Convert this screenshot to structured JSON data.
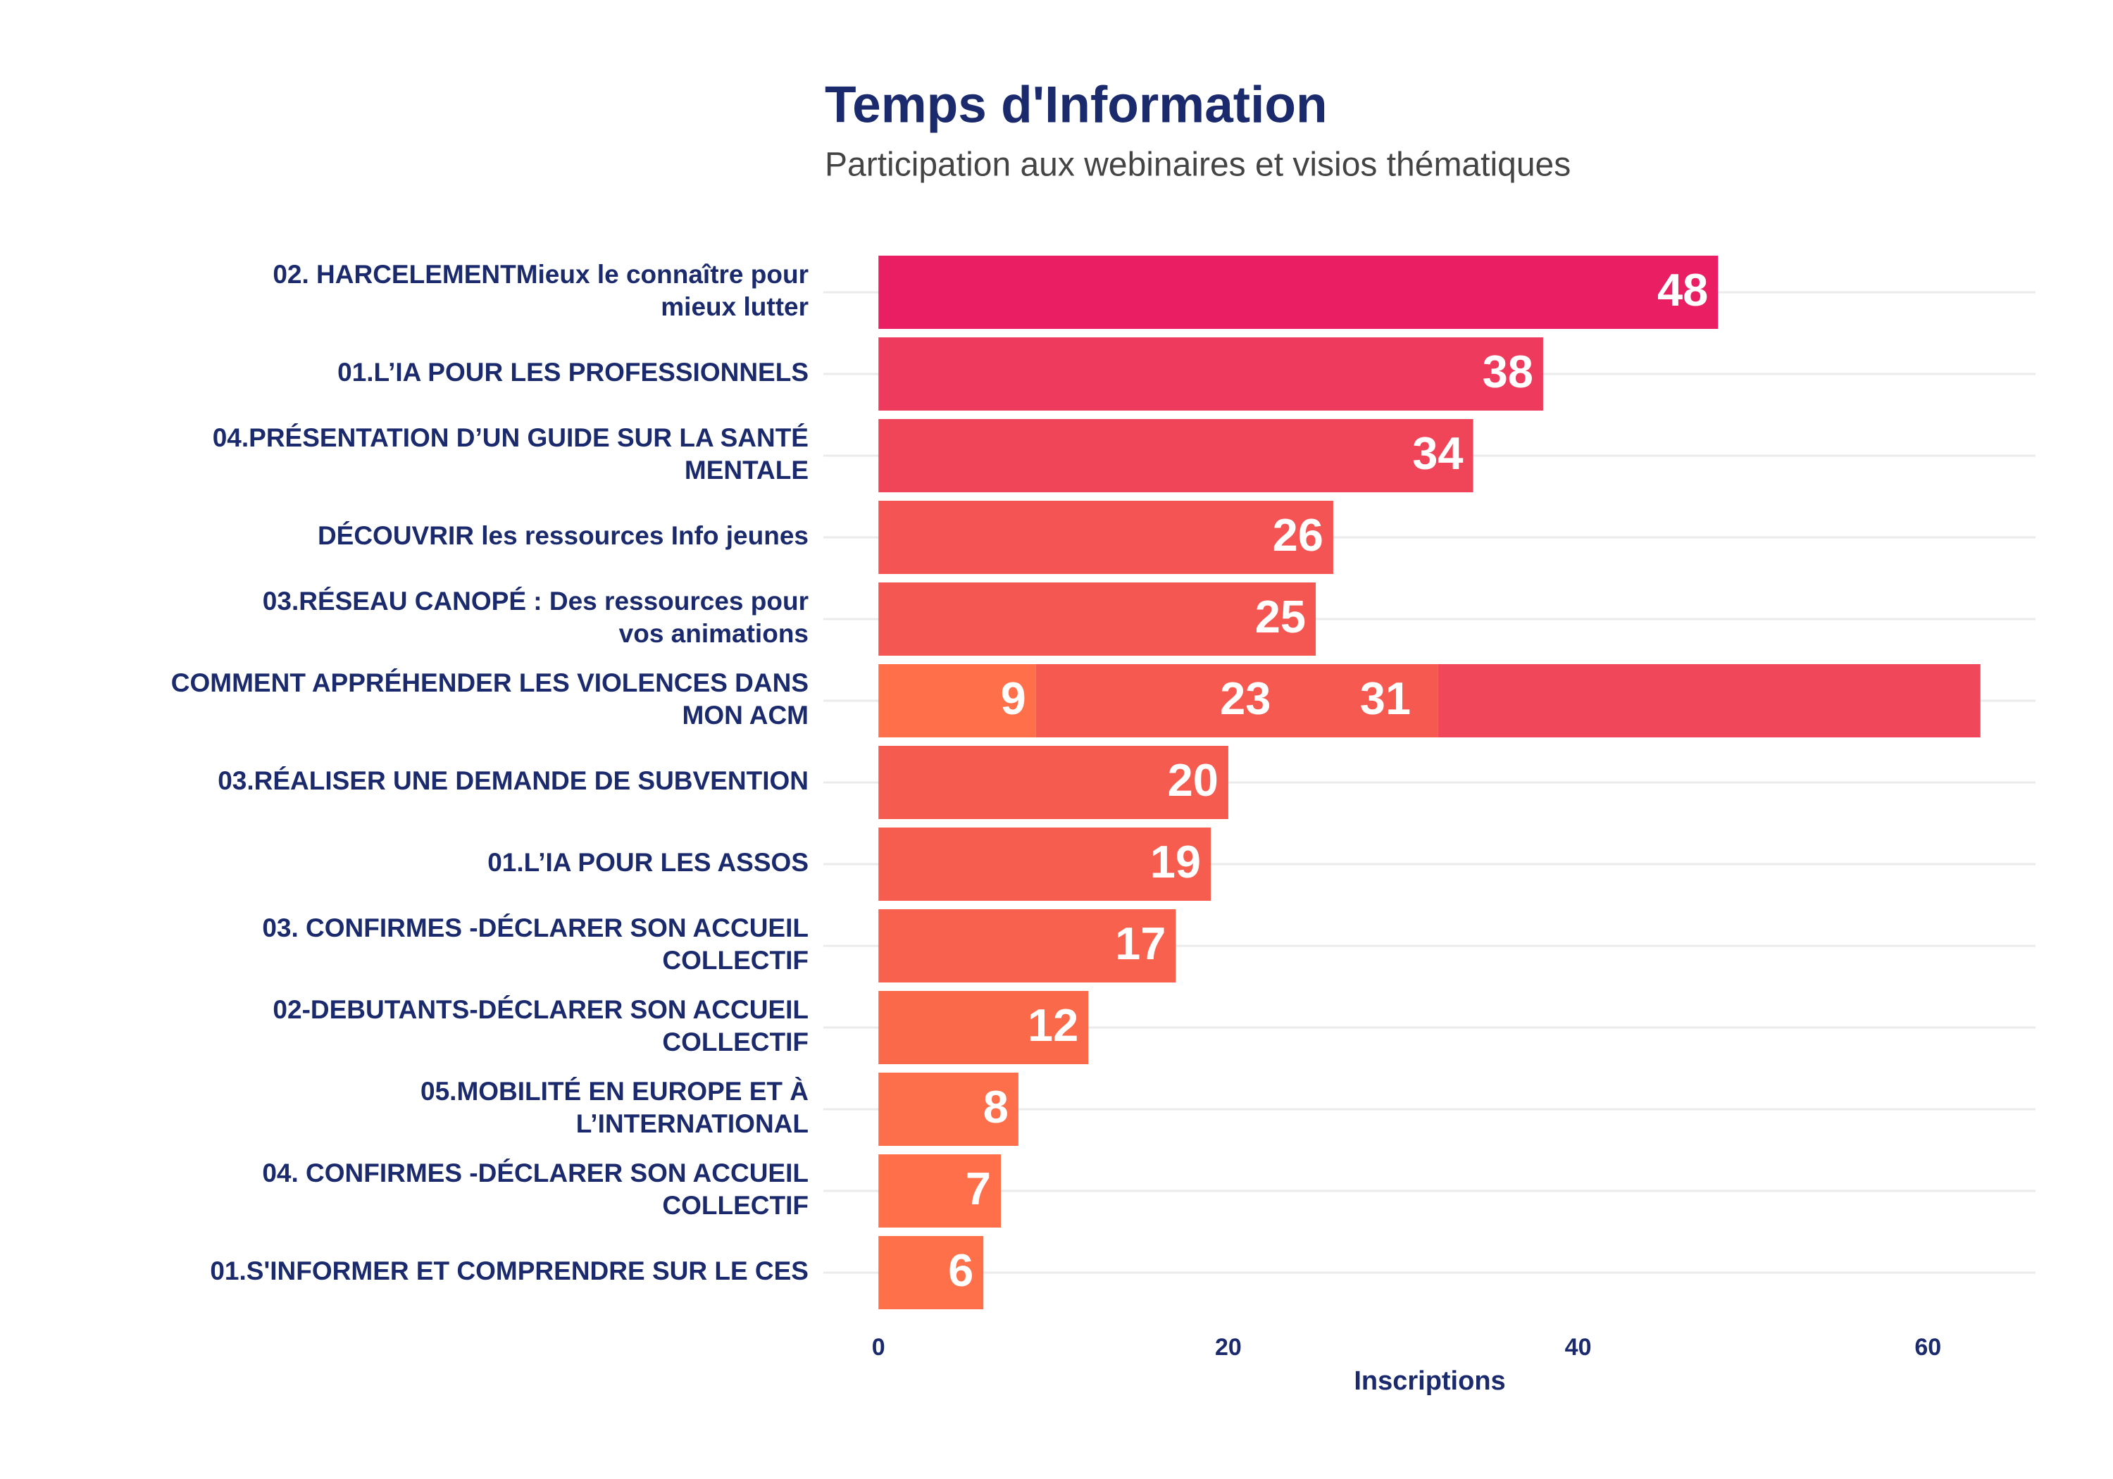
{
  "chart_data": {
    "type": "hbar-stacked",
    "title": "Temps d'Information",
    "subtitle": "Participation aux webinaires et visios thématiques",
    "x_label": "Inscriptions",
    "categories": [
      "02. HARCELEMENTMieux le connaître pour\nmieux lutter",
      "01.L’IA POUR LES PROFESSIONNELS",
      "04.PRÉSENTATION D’UN GUIDE SUR LA SANTÉ\nMENTALE",
      "DÉCOUVRIR les ressources Info jeunes",
      "03.RÉSEAU CANOPÉ : Des ressources pour\nvos animations",
      "COMMENT APPRÉHENDER LES VIOLENCES DANS\nMON ACM",
      "03.RÉALISER UNE DEMANDE DE SUBVENTION",
      "01.L’IA POUR LES ASSOS",
      "03. CONFIRMES -DÉCLARER SON ACCUEIL\nCOLLECTIF",
      "02-DEBUTANTS-DÉCLARER SON ACCUEIL\nCOLLECTIF",
      "05.MOBILITÉ EN EUROPE ET À\nL’INTERNATIONAL",
      "04. CONFIRMES -DÉCLARER SON ACCUEIL\nCOLLECTIF",
      "01.S'INFORMER ET COMPRENDRE SUR LE CES"
    ],
    "values": [
      [
        48
      ],
      [
        38
      ],
      [
        34
      ],
      [
        26
      ],
      [
        25
      ],
      [
        9,
        23,
        31
      ],
      [
        20
      ],
      [
        19
      ],
      [
        17
      ],
      [
        12
      ],
      [
        8
      ],
      [
        7
      ],
      [
        6
      ]
    ],
    "colors": [
      [
        "#e91e63"
      ],
      [
        "#ee3a5d"
      ],
      [
        "#f04458"
      ],
      [
        "#f45453"
      ],
      [
        "#f45652"
      ],
      [
        "#fe6f4a",
        "#f5594f",
        "#f0475a"
      ],
      [
        "#f65b4f"
      ],
      [
        "#f75d4e"
      ],
      [
        "#f8614d"
      ],
      [
        "#fb694b"
      ],
      [
        "#fd6e4a"
      ],
      [
        "#fe6f4a"
      ],
      [
        "#fe704a"
      ]
    ],
    "xlim": [
      -3.15,
      66.15
    ],
    "xticks": [
      0,
      20,
      40,
      60
    ],
    "grid": true
  }
}
